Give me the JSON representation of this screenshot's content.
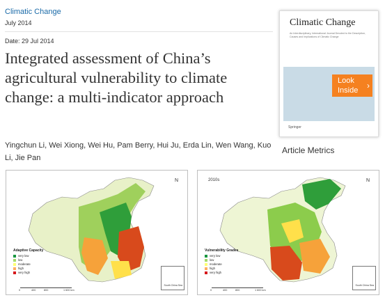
{
  "journal": "Climatic Change",
  "issue": "July 2014",
  "date": "Date: 29 Jul 2014",
  "title": "Integrated assessment of China’s agricultural vulnerability to climate change: a multi-indicator approach",
  "authors": "Yingchun Li, Wei Xiong, Wei Hu, Pam Berry, Hui Ju, Erda Lin, Wen Wang, Kuo Li, Jie Pan",
  "cover": {
    "title": "Climatic Change",
    "subtitle": "An Interdisciplinary, International Journal Devoted to the Description, Causes and Implications of Climatic Change",
    "publisher": "Springer"
  },
  "look_inside": {
    "line1": "Look",
    "line2": "Inside"
  },
  "article_metrics": "Article Metrics",
  "figures": [
    {
      "year": "",
      "legend_title": "Adaptive Capacity",
      "legend": [
        {
          "label": "very low",
          "color": "#1a9641"
        },
        {
          "label": "low",
          "color": "#a6d96a"
        },
        {
          "label": "moderate",
          "color": "#ffff73"
        },
        {
          "label": "high",
          "color": "#fdae61"
        },
        {
          "label": "very high",
          "color": "#d7191c"
        }
      ],
      "scale_labels": [
        "0",
        "400",
        "800",
        "1 600 km"
      ],
      "inset_label": "South China Sea",
      "north": "N"
    },
    {
      "year": "2010s",
      "legend_title": "Vulnerability Grades",
      "legend": [
        {
          "label": "very low",
          "color": "#1a9641"
        },
        {
          "label": "low",
          "color": "#a6d96a"
        },
        {
          "label": "moderate",
          "color": "#ffff73"
        },
        {
          "label": "high",
          "color": "#fdae61"
        },
        {
          "label": "very high",
          "color": "#d7191c"
        }
      ],
      "scale_labels": [
        "0",
        "400",
        "800",
        "1 600 km"
      ],
      "inset_label": "South China Sea",
      "north": "N"
    }
  ]
}
